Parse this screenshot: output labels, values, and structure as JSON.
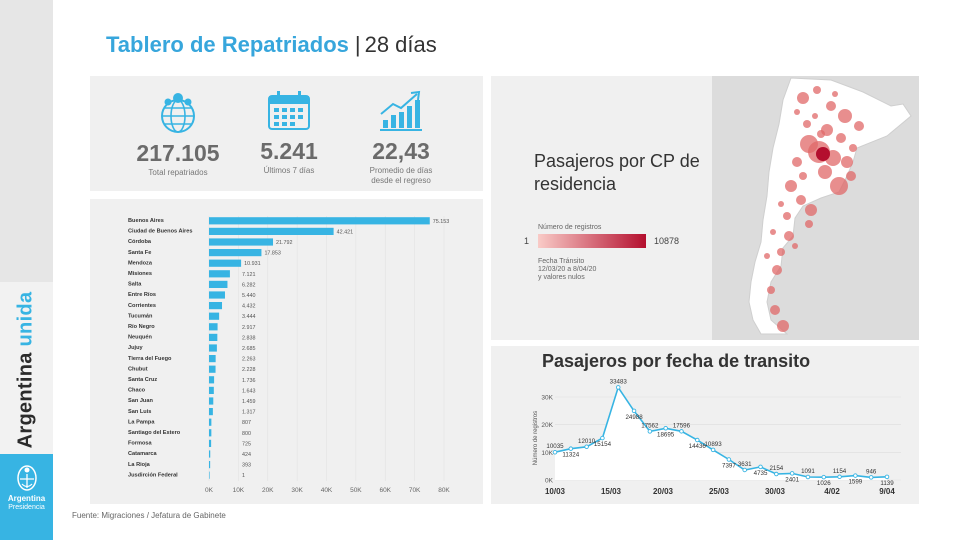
{
  "header": {
    "title": "Tablero de Repatriados",
    "separator": "|",
    "subtitle": "28 días"
  },
  "brand": {
    "part1": "Argentina ",
    "part2": "unida",
    "gov_name": "Argentina",
    "gov_sub": "Presidencia"
  },
  "kpis": [
    {
      "icon": "globe-people-icon",
      "value": "217.105",
      "label": "Total repatriados"
    },
    {
      "icon": "calendar-icon",
      "value": "5.241",
      "label": "Últimos 7 días"
    },
    {
      "icon": "trend-chart-icon",
      "value": "22,43",
      "label": "Promedio de días",
      "label2": "desde el regreso"
    }
  ],
  "map_panel": {
    "title": "Pasajeros por CP de residencia",
    "legend_title": "Número de registros",
    "legend_min": "1",
    "legend_max": "10878",
    "legend_note": "Fecha Tránsito\n12/03/20 a 8/04/20\ny valores nulos",
    "colors": {
      "low": "#f9cbc7",
      "high": "#b40f2e"
    }
  },
  "line_panel": {
    "title": "Pasajeros por fecha de transito"
  },
  "source": "Fuente: Migraciones / Jefatura de Gabinete",
  "chart_data": [
    {
      "type": "bar",
      "orientation": "horizontal",
      "color": "#37b4e3",
      "categories": [
        "Buenos Aires",
        "Ciudad de Buenos Aires",
        "Córdoba",
        "Santa Fe",
        "Mendoza",
        "Misiones",
        "Salta",
        "Entre Ríos",
        "Corrientes",
        "Tucumán",
        "Río Negro",
        "Neuquén",
        "Jujuy",
        "Tierra del Fuego",
        "Chubut",
        "Santa Cruz",
        "Chaco",
        "San Juan",
        "San Luis",
        "La Pampa",
        "Santiago del Estero",
        "Formosa",
        "Catamarca",
        "La Rioja",
        "Jusdirción Federal"
      ],
      "values": [
        75153,
        42421,
        21792,
        17853,
        10931,
        7121,
        6282,
        5440,
        4432,
        3444,
        2917,
        2838,
        2685,
        2263,
        2228,
        1736,
        1643,
        1459,
        1317,
        807,
        800,
        725,
        424,
        393,
        1
      ],
      "value_labels": [
        "75.153",
        "42.421",
        "21.792",
        "17.853",
        "10.931",
        "7.121",
        "6.282",
        "5.440",
        "4.432",
        "3.444",
        "2.917",
        "2.838",
        "2.685",
        "2.263",
        "2.228",
        "1.736",
        "1.643",
        "1.459",
        "1.317",
        "807",
        "800",
        "725",
        "424",
        "393",
        "1"
      ],
      "xlim": [
        0,
        80000
      ],
      "xticks": [
        "0K",
        "10K",
        "20K",
        "30K",
        "40K",
        "50K",
        "60K",
        "70K",
        "80K"
      ]
    },
    {
      "type": "area",
      "title": "Pasajeros por fecha de transito",
      "color": "#37b4e3",
      "ylabel": "Número de registros",
      "ylim": [
        0,
        30000
      ],
      "yticks": [
        "0K",
        "10K",
        "20K",
        "30K"
      ],
      "xticks": [
        "10/03",
        "15/03",
        "20/03",
        "25/03",
        "30/03",
        "4/02",
        "9/04"
      ],
      "x_start": "10/03",
      "values": [
        10035,
        11324,
        12010,
        15154,
        33483,
        24988,
        17562,
        18695,
        17596,
        14436,
        10893,
        7397,
        3631,
        4735,
        2154,
        2401,
        1091,
        1026,
        1154,
        1599,
        946,
        1139
      ],
      "labels": [
        "10035",
        "11324",
        "12010",
        "15154",
        "33483",
        "24988",
        "17562",
        "18695",
        "17596",
        "14436",
        "10893",
        "7397",
        "3631",
        "4735",
        "2154",
        "2401",
        "1091",
        "1026",
        "1154",
        "1599",
        "946",
        "1139"
      ]
    }
  ]
}
